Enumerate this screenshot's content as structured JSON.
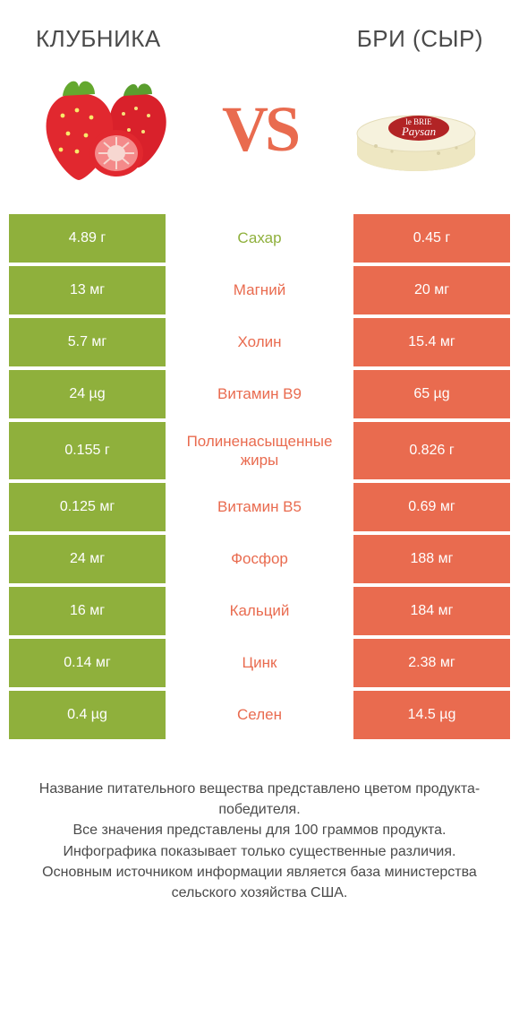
{
  "colors": {
    "green": "#8fb03c",
    "orange": "#e96b4f",
    "text": "#4a4a4a",
    "white": "#ffffff"
  },
  "header": {
    "left_title": "КЛУБНИКА",
    "right_title": "БРИ (СЫР)"
  },
  "hero": {
    "vs_text": "VS"
  },
  "rows": [
    {
      "left": "4.89 г",
      "label": "Сахар",
      "right": "0.45 г",
      "winner": "left",
      "tall": false
    },
    {
      "left": "13 мг",
      "label": "Магний",
      "right": "20 мг",
      "winner": "right",
      "tall": false
    },
    {
      "left": "5.7 мг",
      "label": "Холин",
      "right": "15.4 мг",
      "winner": "right",
      "tall": false
    },
    {
      "left": "24 µg",
      "label": "Витамин B9",
      "right": "65 µg",
      "winner": "right",
      "tall": false
    },
    {
      "left": "0.155 г",
      "label": "Полиненасыщенные жиры",
      "right": "0.826 г",
      "winner": "right",
      "tall": true
    },
    {
      "left": "0.125 мг",
      "label": "Витамин B5",
      "right": "0.69 мг",
      "winner": "right",
      "tall": false
    },
    {
      "left": "24 мг",
      "label": "Фосфор",
      "right": "188 мг",
      "winner": "right",
      "tall": false
    },
    {
      "left": "16 мг",
      "label": "Кальций",
      "right": "184 мг",
      "winner": "right",
      "tall": false
    },
    {
      "left": "0.14 мг",
      "label": "Цинк",
      "right": "2.38 мг",
      "winner": "right",
      "tall": false
    },
    {
      "left": "0.4 µg",
      "label": "Селен",
      "right": "14.5 µg",
      "winner": "right",
      "tall": false
    }
  ],
  "footer": {
    "line1": "Название питательного вещества представлено цветом продукта-победителя.",
    "line2": "Все значения представлены для 100 граммов продукта.",
    "line3": "Инфографика показывает только существенные различия.",
    "line4": "Основным источником информации является база министерства сельского хозяйства США."
  },
  "brie_label": {
    "line1": "le BRIE",
    "line2": "Paysan"
  }
}
